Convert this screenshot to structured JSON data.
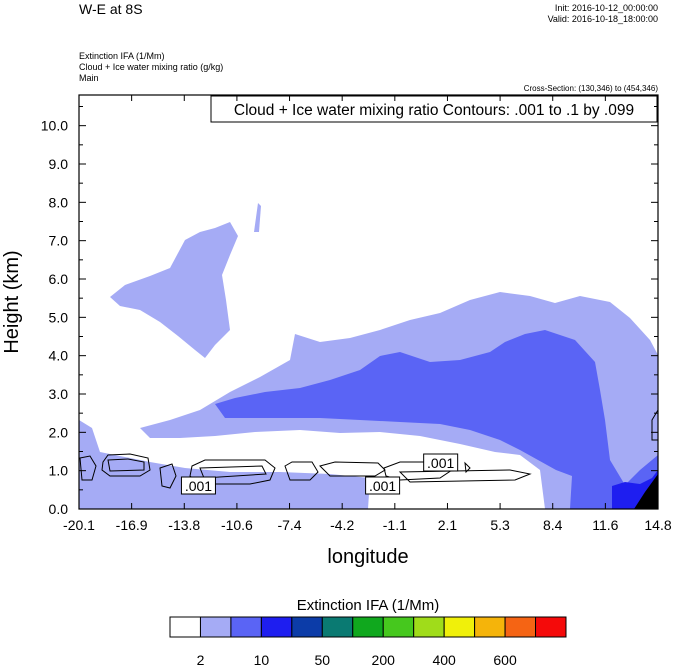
{
  "header": {
    "title": "W-E at 8S",
    "init": "Init: 2016-10-12_00:00:00",
    "valid": "Valid: 2016-10-18_18:00:00",
    "field1": "Extinction IFA   (1/Mm)",
    "field2": "Cloud + Ice water mixing ratio   (g/kg)",
    "field3": "Main",
    "cross_section": "Cross-Section: (130,346) to (454,346)"
  },
  "chart_data": {
    "type": "contour",
    "title": "Cloud + Ice water mixing ratio Contours: .001 to .1 by .099",
    "xlabel": "longitude",
    "ylabel": "Height (km)",
    "xlim": [
      -20.1,
      14.8
    ],
    "ylim": [
      0,
      10.8
    ],
    "x_ticks": [
      "-20.1",
      "-16.9",
      "-13.8",
      "-10.6",
      "-7.4",
      "-4.2",
      "-1.1",
      "2.1",
      "5.3",
      "8.4",
      "11.6",
      "14.8"
    ],
    "y_ticks": [
      "0.0",
      "1.0",
      "2.0",
      "3.0",
      "4.0",
      "5.0",
      "6.0",
      "7.0",
      "8.0",
      "9.0",
      "10.0"
    ],
    "contour_labels": [
      {
        "text": ".001",
        "x": -12.9,
        "y": 0.6
      },
      {
        "text": ".001",
        "x": -1.8,
        "y": 0.6
      },
      {
        "text": ".001",
        "x": 1.7,
        "y": 1.2
      }
    ],
    "colorbar": {
      "title": "Extinction IFA  (1/Mm)",
      "tick_labels": [
        "2",
        "10",
        "50",
        "200",
        "400",
        "600"
      ],
      "colors": [
        "#ffffff",
        "#a5abf5",
        "#5a64f5",
        "#1e1ef0",
        "#0c3ca8",
        "#0a7a72",
        "#10a81e",
        "#46c81e",
        "#a0dc1a",
        "#f0f00a",
        "#f5b40a",
        "#f56414",
        "#f50a0a"
      ]
    },
    "fill_colors": {
      "level1": "#a5abf5",
      "level2": "#5a64f5",
      "level3": "#1e1ef0",
      "black": "#000000"
    }
  }
}
